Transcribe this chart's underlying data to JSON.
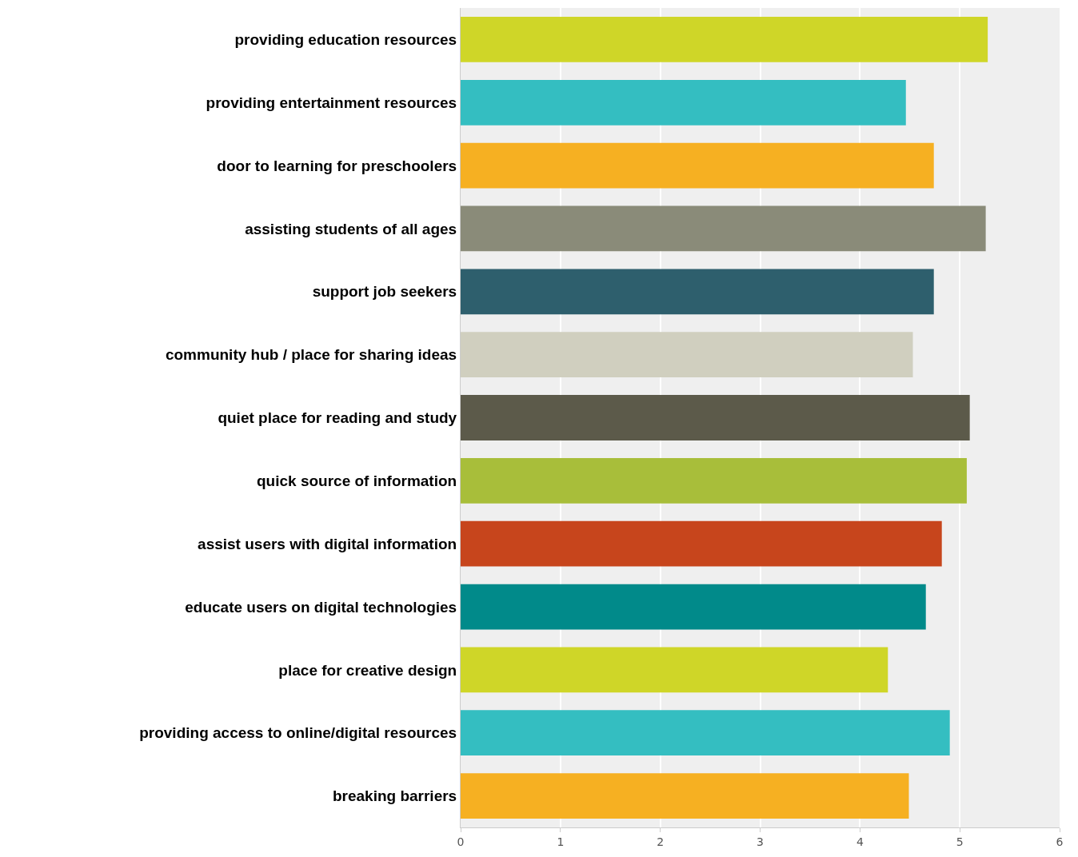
{
  "chart_data": {
    "type": "bar",
    "orientation": "horizontal",
    "categories": [
      "providing education resources",
      "providing entertainment resources",
      "door to learning for preschoolers",
      "assisting students of all ages",
      "support job seekers",
      "community hub / place for sharing ideas",
      "quiet place for reading and study",
      "quick source of information",
      "assist users with digital information",
      "educate users on digital technologies",
      "place for creative design",
      "providing access to online/digital resources",
      "breaking barriers"
    ],
    "values": [
      5.28,
      4.46,
      4.74,
      5.26,
      4.74,
      4.53,
      5.1,
      5.07,
      4.82,
      4.66,
      4.28,
      4.9,
      4.49
    ],
    "colors": [
      "#cfd628",
      "#34bec1",
      "#f6b022",
      "#8a8b79",
      "#2e5f6d",
      "#d0cfbf",
      "#5c5a4a",
      "#a8be3a",
      "#c7451c",
      "#018a8a",
      "#cfd628",
      "#34bec1",
      "#f6b022"
    ],
    "xlim": [
      0,
      6
    ],
    "xticks": [
      0,
      1,
      2,
      3,
      4,
      5,
      6
    ],
    "grid": "x"
  }
}
